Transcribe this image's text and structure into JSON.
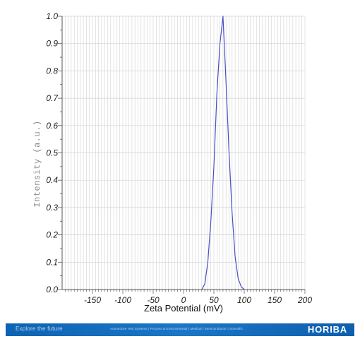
{
  "chart_data": {
    "type": "line",
    "title": "",
    "xlabel": "Zeta Potential (mV)",
    "ylabel": "Intensity (a.u.)",
    "xlim": [
      -200,
      200
    ],
    "ylim": [
      0.0,
      1.0
    ],
    "x_ticks": [
      -150,
      -100,
      -50,
      0,
      50,
      100,
      150,
      200
    ],
    "y_ticks": [
      "0.0",
      "0.1",
      "0.2",
      "0.3",
      "0.4",
      "0.5",
      "0.6",
      "0.7",
      "0.8",
      "0.9",
      "1.0"
    ],
    "grid": true,
    "legend": "none",
    "series": [
      {
        "color": "#4a4fc4",
        "x": [
          30,
          35,
          40,
          45,
          50,
          55,
          60,
          65,
          70,
          75,
          80,
          85,
          90,
          95,
          100
        ],
        "y": [
          0.0,
          0.02,
          0.1,
          0.25,
          0.45,
          0.72,
          0.9,
          1.0,
          0.76,
          0.5,
          0.28,
          0.12,
          0.04,
          0.01,
          0.0
        ]
      }
    ]
  },
  "footer": {
    "tagline": "Explore the future",
    "divisions": "Automotive Test Systems  |  Process & Environmental  |  Medical  |  Semiconductor  |  Scientific",
    "logo_text": "HORIBA"
  },
  "colors": {
    "grid": "#d2d2d2",
    "axis": "#555555",
    "footer_bg": "#1467b8"
  }
}
